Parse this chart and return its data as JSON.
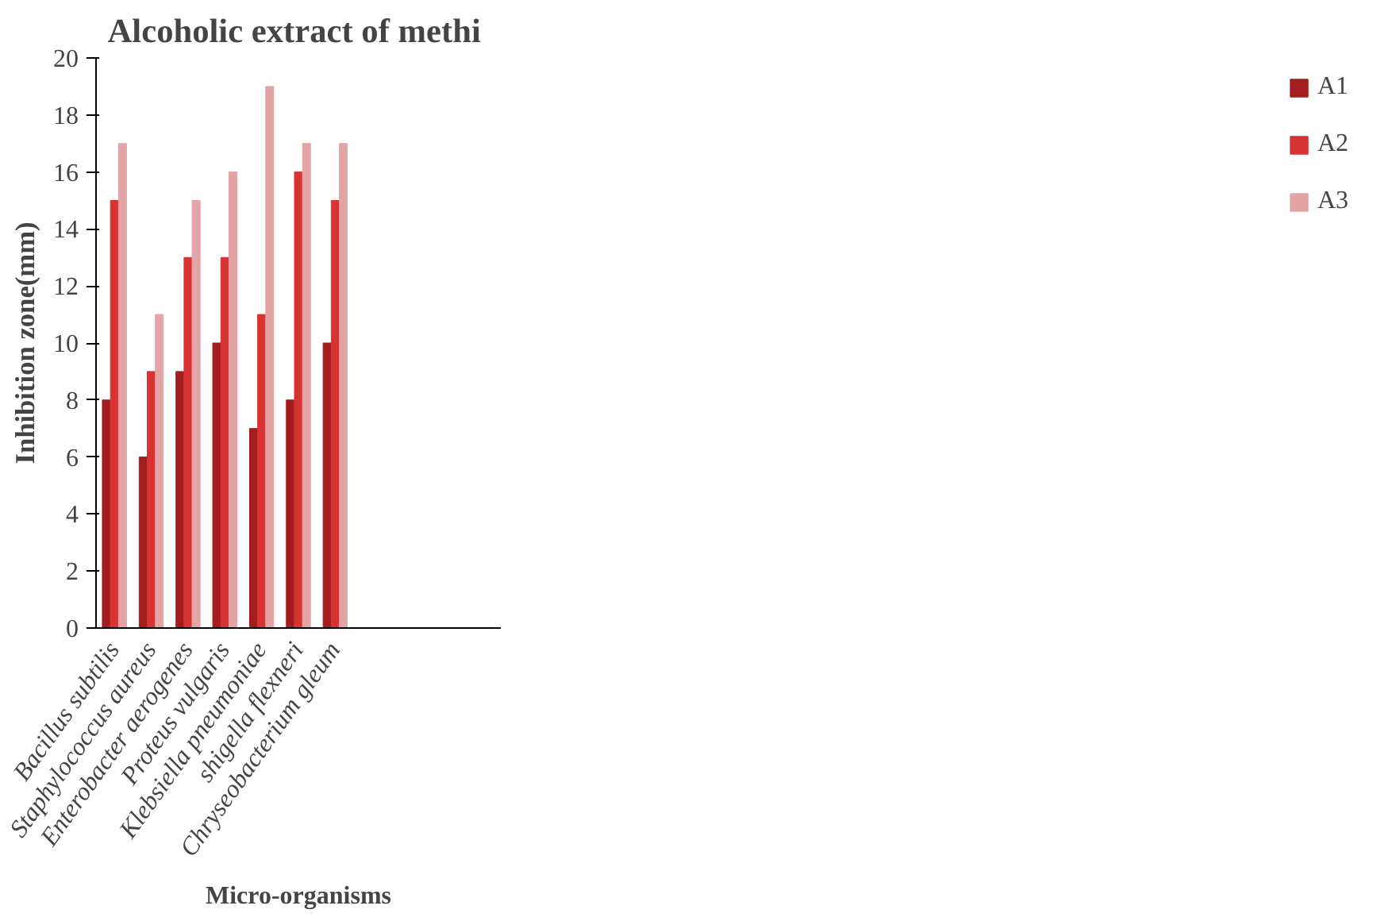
{
  "chart_data": {
    "type": "bar",
    "title": "Alcoholic extract of  methi",
    "xlabel": "Micro-organisms",
    "ylabel": "Inhibition zone(mm)",
    "categories": [
      "Bacillus subtilis",
      "Staphylococcus aureus",
      "Enterobacter aerogenes",
      "Proteus vulgaris",
      "Klebsiella pneumoniae",
      "shigella flexneri",
      "Chryseobacterium gleum"
    ],
    "series": [
      {
        "name": "A1",
        "color": "#a31d1d",
        "values": [
          8,
          6,
          9,
          10,
          7,
          8,
          10
        ]
      },
      {
        "name": "A2",
        "color": "#d83333",
        "values": [
          15,
          9,
          13,
          13,
          11,
          16,
          15
        ]
      },
      {
        "name": "A3",
        "color": "#e3a4a6",
        "values": [
          17,
          11,
          15,
          16,
          19,
          17,
          17
        ]
      }
    ],
    "ylim": [
      0,
      20
    ],
    "yticks": [
      0,
      2,
      4,
      6,
      8,
      10,
      12,
      14,
      16,
      18,
      20
    ],
    "grid": false,
    "legend": "right"
  }
}
